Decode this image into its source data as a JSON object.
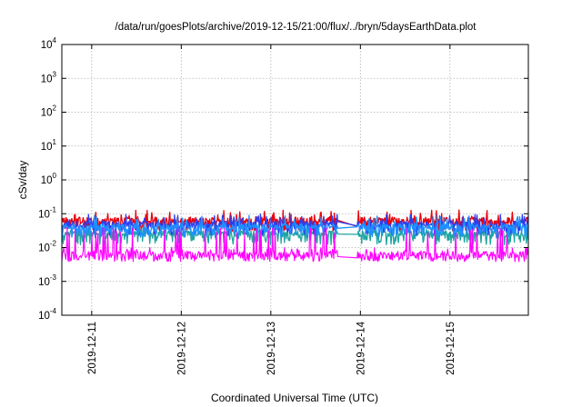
{
  "chart_data": {
    "type": "line",
    "title": "/data/run/goesPlots/archive/2019-12-15/21:00/flux/../bryn/5daysEarthData.plot",
    "xlabel": "Coordinated Universal Time (UTC)",
    "ylabel": "cSv/day",
    "y_scale": "log",
    "ylim": [
      0.0001,
      10000
    ],
    "xlim": [
      "2019-12-10T16:00",
      "2019-12-15T21:00"
    ],
    "y_ticks": [
      {
        "base": "10",
        "exp": "-4",
        "value": 0.0001
      },
      {
        "base": "10",
        "exp": "-3",
        "value": 0.001
      },
      {
        "base": "10",
        "exp": "-2",
        "value": 0.01
      },
      {
        "base": "10",
        "exp": "-1",
        "value": 0.1
      },
      {
        "base": "10",
        "exp": "0",
        "value": 1
      },
      {
        "base": "10",
        "exp": "1",
        "value": 10
      },
      {
        "base": "10",
        "exp": "2",
        "value": 100
      },
      {
        "base": "10",
        "exp": "3",
        "value": 1000
      },
      {
        "base": "10",
        "exp": "4",
        "value": 10000
      }
    ],
    "x_ticks": [
      "2019-12-11",
      "2019-12-12",
      "2019-12-13",
      "2019-12-14",
      "2019-12-15"
    ],
    "grid": true,
    "legend": "none",
    "gap": [
      "2019-12-13T18:00",
      "2019-12-13T23:00"
    ],
    "series": [
      {
        "color": "#e8000b",
        "base": 0.055,
        "spread": 0.45,
        "spikes": 0.1
      },
      {
        "color": "#20a5a0",
        "base": 0.022,
        "spread": 0.35,
        "spikes": 0.03
      },
      {
        "color": "#2b3ff2",
        "base": 0.042,
        "spread": 0.35,
        "spikes": 0.075
      },
      {
        "color": "#1e90ff",
        "base": 0.035,
        "spread": 0.4,
        "spikes": 0.07
      },
      {
        "color": "#ff00ff",
        "base": 0.007,
        "spread": 0.9,
        "spikes": 0.03
      }
    ]
  }
}
